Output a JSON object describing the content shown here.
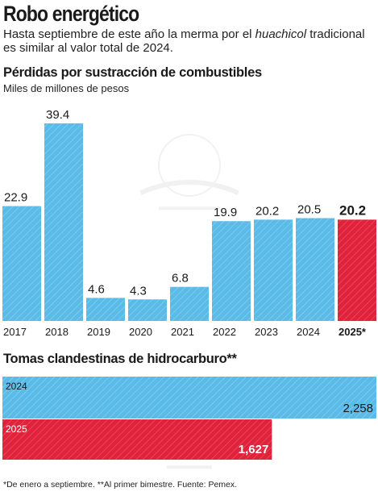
{
  "header": {
    "title": "Robo energético",
    "subtitle_before": "Hasta septiembre de este año la merma por el ",
    "subtitle_italic": "huachicol",
    "subtitle_after": " tradicional es similar al valor total de 2024."
  },
  "colors": {
    "blue": "#5bbbe8",
    "blue_hatch": "#8fd3f2",
    "red": "#e0223a",
    "red_hatch": "#ee5a6c"
  },
  "chart_data": [
    {
      "type": "bar",
      "title": "Pérdidas por sustracción de combustibles",
      "ylabel": "Miles de millones de pesos",
      "categories": [
        "2017",
        "2018",
        "2019",
        "2020",
        "2021",
        "2022",
        "2023",
        "2024",
        "2025*"
      ],
      "values": [
        22.9,
        39.4,
        4.6,
        4.3,
        6.8,
        19.9,
        20.2,
        20.5,
        20.2
      ],
      "value_labels": [
        "22.9",
        "39.4",
        "4.6",
        "4.3",
        "6.8",
        "19.9",
        "20.2",
        "20.5",
        "20.2"
      ],
      "highlight_index": 8
    },
    {
      "type": "bar",
      "orientation": "horizontal",
      "title": "Tomas clandestinas de hidrocarburo**",
      "categories": [
        "2024",
        "2025"
      ],
      "values": [
        2258,
        1627
      ],
      "value_labels": [
        "2,258",
        "1,627"
      ],
      "highlight_index": 1
    }
  ],
  "footnote": "*De enero a septiembre. **Al primer bimestre. Fuente: Pemex."
}
